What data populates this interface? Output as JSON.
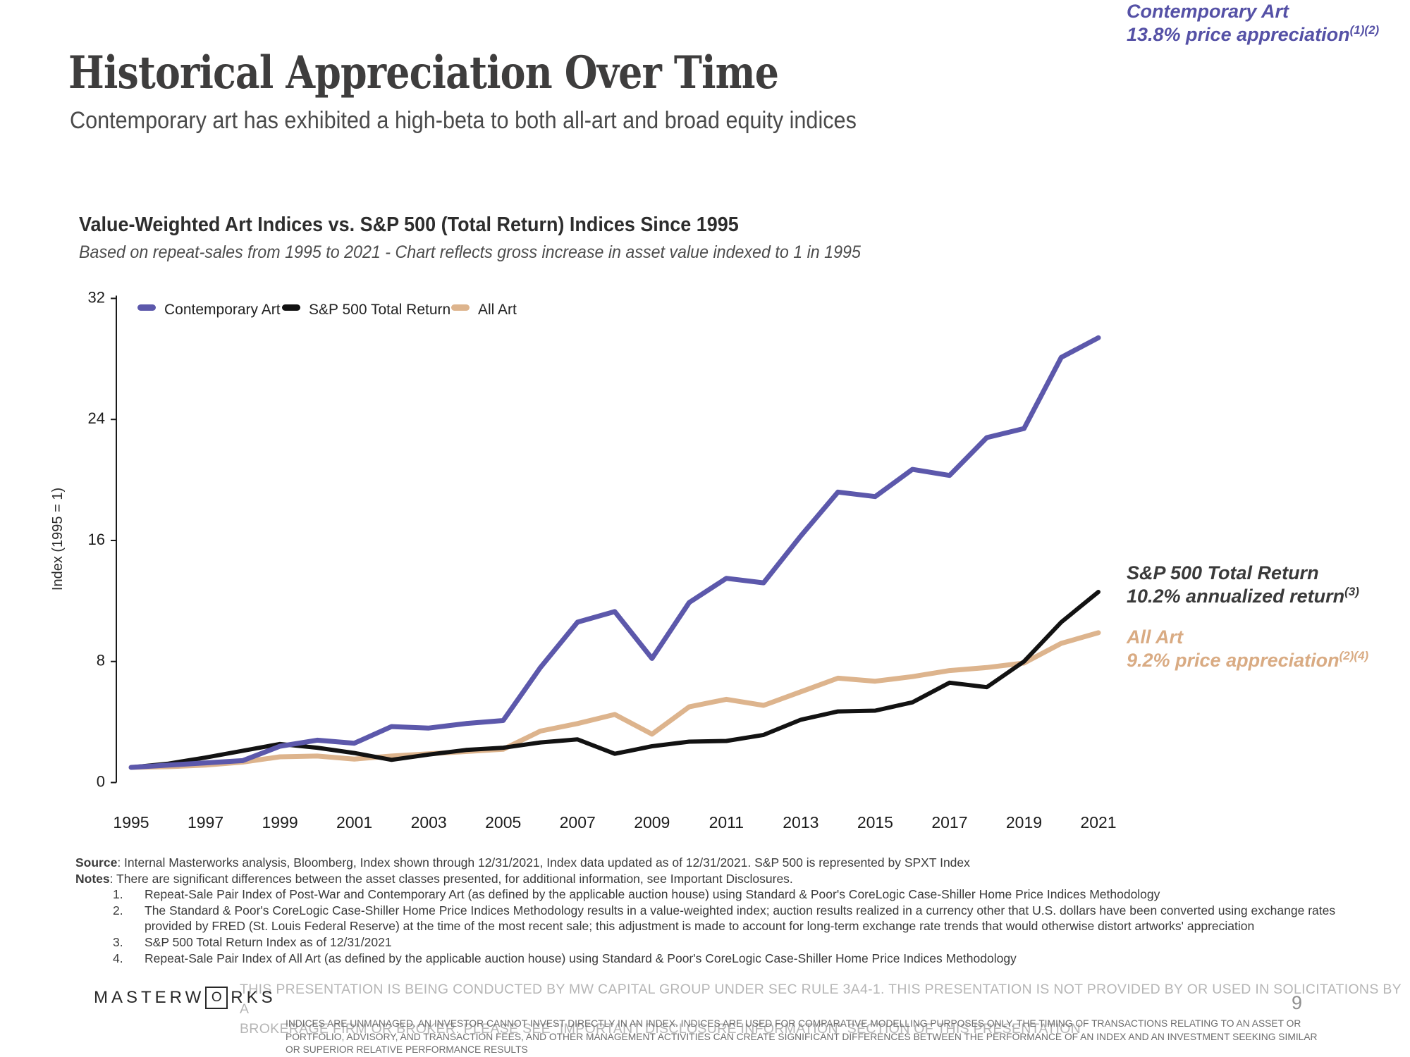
{
  "slide": {
    "title": "Historical Appreciation Over Time",
    "subtitle": "Contemporary art has exhibited a high-beta to both all-art and broad equity indices",
    "page_number": "9"
  },
  "chart": {
    "title": "Value-Weighted Art Indices vs. S&P 500 (Total Return) Indices Since 1995",
    "subtitle": "Based on repeat-sales from 1995 to 2021 - Chart reflects gross increase in asset value indexed to 1 in 1995"
  },
  "chart_data": {
    "type": "line",
    "title": "Value-Weighted Art Indices vs. S&P 500 (Total Return) Indices Since 1995",
    "xlabel": "",
    "ylabel": "Index (1995 = 1)",
    "ylim": [
      0,
      32
    ],
    "y_ticks": [
      0,
      8,
      16,
      24,
      32
    ],
    "x_ticks": [
      1995,
      1997,
      1999,
      2001,
      2003,
      2005,
      2007,
      2009,
      2011,
      2013,
      2015,
      2017,
      2019,
      2021
    ],
    "grid": false,
    "legend_position": "top-left",
    "x": [
      1995,
      1996,
      1997,
      1998,
      1999,
      2000,
      2001,
      2002,
      2003,
      2004,
      2005,
      2006,
      2007,
      2008,
      2009,
      2010,
      2011,
      2012,
      2013,
      2014,
      2015,
      2016,
      2017,
      2018,
      2019,
      2020,
      2021
    ],
    "series": [
      {
        "name": "Contemporary Art",
        "color": "#5c58ab",
        "values": [
          1.0,
          1.15,
          1.3,
          1.45,
          2.4,
          2.8,
          2.6,
          3.7,
          3.6,
          3.9,
          4.1,
          7.6,
          10.6,
          11.3,
          8.2,
          11.9,
          13.5,
          13.2,
          16.3,
          19.2,
          18.9,
          20.7,
          20.3,
          22.8,
          23.4,
          28.1,
          29.4
        ]
      },
      {
        "name": "S&P 500 Total Return",
        "color": "#121212",
        "values": [
          1.0,
          1.25,
          1.65,
          2.1,
          2.55,
          2.3,
          1.95,
          1.5,
          1.85,
          2.15,
          2.3,
          2.65,
          2.85,
          1.9,
          2.4,
          2.7,
          2.75,
          3.15,
          4.15,
          4.7,
          4.75,
          5.3,
          6.6,
          6.3,
          8.0,
          10.6,
          12.6
        ]
      },
      {
        "name": "All Art",
        "color": "#ddb48d",
        "values": [
          1.0,
          1.05,
          1.15,
          1.35,
          1.7,
          1.75,
          1.55,
          1.75,
          1.9,
          2.05,
          2.2,
          3.4,
          3.9,
          4.5,
          3.2,
          5.0,
          5.5,
          5.1,
          6.0,
          6.9,
          6.7,
          7.0,
          7.4,
          7.6,
          7.9,
          9.2,
          9.9
        ]
      }
    ]
  },
  "annotations": [
    {
      "title": "Contemporary Art",
      "detail": "13.8% price appreciation",
      "superscript": "(1)(2)",
      "color": "#5551a6"
    },
    {
      "title": "S&P 500 Total Return",
      "detail": "10.2% annualized return",
      "superscript": "(3)",
      "color": "#3a3a3a"
    },
    {
      "title": "All Art",
      "detail": "9.2% price appreciation",
      "superscript": "(2)(4)",
      "color": "#d9ab83"
    }
  ],
  "footer": {
    "source_label": "Source",
    "source_text": ": Internal Masterworks analysis, Bloomberg, Index shown through 12/31/2021, Index data updated as of 12/31/2021. S&P 500 is represented by SPXT Index",
    "notes_label": "Notes",
    "notes_text": ": There are significant differences between the asset classes presented, for additional information, see Important Disclosures.",
    "numbered_notes": [
      {
        "num": "1.",
        "lines": [
          "Repeat-Sale Pair Index of Post-War and Contemporary Art (as defined by the applicable auction house) using Standard & Poor's CoreLogic Case-Shiller Home Price Indices Methodology"
        ]
      },
      {
        "num": "2.",
        "lines": [
          "The Standard & Poor's CoreLogic Case-Shiller Home Price Indices Methodology results in a value-weighted index; auction results realized in a currency other that U.S. dollars have been converted using exchange rates",
          "provided by FRED (St. Louis Federal Reserve) at the time of the most recent sale; this adjustment is made to account for long-term exchange rate trends that would otherwise distort artworks' appreciation"
        ]
      },
      {
        "num": "3.",
        "lines": [
          "S&P 500 Total Return Index as of 12/31/2021"
        ]
      },
      {
        "num": "4.",
        "lines": [
          "Repeat-Sale Pair Index of All Art (as defined by the applicable auction house) using Standard & Poor's CoreLogic Case-Shiller Home Price Indices Methodology"
        ]
      }
    ]
  },
  "disclaimer": {
    "primary_lines": [
      "THIS PRESENTATION IS BEING CONDUCTED BY MW CAPITAL GROUP UNDER SEC RULE 3A4-1. THIS PRESENTATION IS NOT PROVIDED BY OR USED IN SOLICITATIONS BY A",
      "BROKERAGE FIRM OR BROKER. PLEASE SEE \"IMPORTANT DISCLOSURE INFORMATION\" SECTION OF THIS PRESENTATION"
    ],
    "secondary_lines": [
      "INDICES ARE UNMANAGED. AN INVESTOR CANNOT INVEST DIRECTLY IN AN INDEX. INDICES ARE USED FOR COMPARATIVE MODELLING PURPOSES ONLY. THE TIMING OF TRANSACTIONS RELATING TO AN ASSET OR",
      "PORTFOLIO, ADVISORY, AND TRANSACTION FEES, AND OTHER MANAGEMENT ACTIVITIES CAN CREATE SIGNIFICANT DIFFERENCES BETWEEN THE PERFORMANCE OF AN INDEX AND AN INVESTMENT SEEKING SIMILAR",
      "OR SUPERIOR RELATIVE PERFORMANCE RESULTS"
    ]
  },
  "logo": {
    "prefix": "MASTERW",
    "boxed_letter": "O",
    "suffix": "RKS"
  }
}
